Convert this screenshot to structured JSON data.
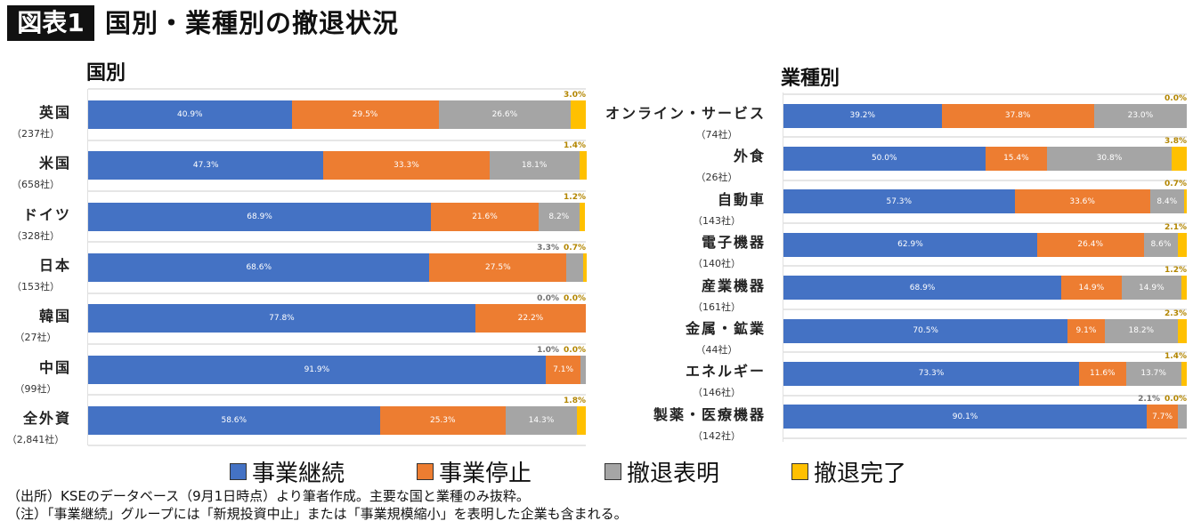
{
  "header": {
    "badge": "図表1",
    "title": "国別・業種別の撤退状況"
  },
  "colors": {
    "事業継続": "#4472c4",
    "事業停止": "#ed7d31",
    "撤退表明": "#a5a5a5",
    "撤退完了": "#ffc000"
  },
  "legend": [
    "事業継続",
    "事業停止",
    "撤退表明",
    "撤退完了"
  ],
  "chart_data": [
    {
      "type": "bar",
      "orientation": "horizontal",
      "stacked": "100%",
      "title": "国別",
      "xlim": [
        0,
        100
      ],
      "categories": [
        "英国",
        "米国",
        "ドイツ",
        "日本",
        "韓国",
        "中国",
        "全外資"
      ],
      "counts": [
        "（237社）",
        "（658社）",
        "（328社）",
        "（153社）",
        "（27社）",
        "（99社）",
        "（2,841社）"
      ],
      "series": [
        {
          "name": "事業継続",
          "values": [
            40.9,
            47.3,
            68.9,
            68.6,
            77.8,
            91.9,
            58.6
          ]
        },
        {
          "name": "事業停止",
          "values": [
            29.5,
            33.3,
            21.6,
            27.5,
            22.2,
            7.1,
            25.3
          ]
        },
        {
          "name": "撤退表明",
          "values": [
            26.6,
            18.1,
            8.2,
            3.3,
            0.0,
            1.0,
            14.3
          ]
        },
        {
          "name": "撤退完了",
          "values": [
            3.0,
            1.4,
            1.2,
            0.7,
            0.0,
            0.0,
            1.8
          ]
        }
      ]
    },
    {
      "type": "bar",
      "orientation": "horizontal",
      "stacked": "100%",
      "title": "業種別",
      "xlim": [
        0,
        100
      ],
      "categories": [
        "オンライン・サービス",
        "外食",
        "自動車",
        "電子機器",
        "産業機器",
        "金属・鉱業",
        "エネルギー",
        "製薬・医療機器"
      ],
      "counts": [
        "（74社）",
        "（26社）",
        "（143社）",
        "（140社）",
        "（161社）",
        "（44社）",
        "（146社）",
        "（142社）"
      ],
      "series": [
        {
          "name": "事業継続",
          "values": [
            39.2,
            50.0,
            57.3,
            62.9,
            68.9,
            70.5,
            73.3,
            90.1
          ]
        },
        {
          "name": "事業停止",
          "values": [
            37.8,
            15.4,
            33.6,
            26.4,
            14.9,
            9.1,
            11.6,
            7.7
          ]
        },
        {
          "name": "撤退表明",
          "values": [
            23.0,
            30.8,
            8.4,
            8.6,
            14.9,
            18.2,
            13.7,
            2.1
          ]
        },
        {
          "name": "撤退完了",
          "values": [
            0.0,
            3.8,
            0.7,
            2.1,
            1.2,
            2.3,
            1.4,
            0.0
          ]
        }
      ]
    }
  ],
  "notes": [
    "（出所）KSEのデータベース（9月1日時点）より筆者作成。主要な国と業種のみ抜粋。",
    "（注）「事業継続」グループには「新規投資中止」または「事業規模縮小」を表明した企業も含まれる。"
  ]
}
